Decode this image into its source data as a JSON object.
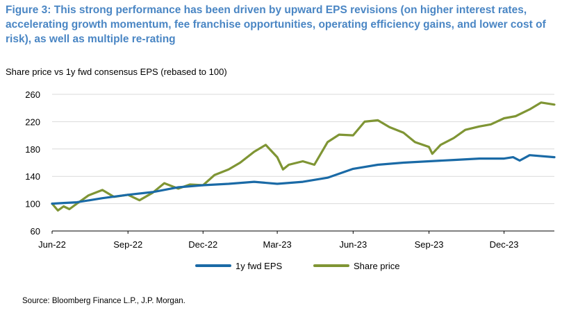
{
  "title": "Figure 3: This strong performance has been driven by upward EPS revisions (on higher interest rates, accelerating growth momentum, fee franchise opportunities, operating efficiency gains, and lower cost of risk), as well as multiple re-rating",
  "subtitle": "Share price vs 1y fwd consensus EPS (rebased to 100)",
  "source": "Source: Bloomberg Finance L.P., J.P. Morgan.",
  "chart_data": {
    "type": "line",
    "ylim": [
      60,
      260
    ],
    "y_ticks": [
      60,
      100,
      140,
      180,
      220,
      260
    ],
    "x_range": [
      "2022-06-01",
      "2024-01-31"
    ],
    "x_ticks": [
      {
        "date": "2022-06-01",
        "label": "Jun-22"
      },
      {
        "date": "2022-09-01",
        "label": "Sep-22"
      },
      {
        "date": "2022-12-01",
        "label": "Dec-22"
      },
      {
        "date": "2023-03-01",
        "label": "Mar-23"
      },
      {
        "date": "2023-06-01",
        "label": "Jun-23"
      },
      {
        "date": "2023-09-01",
        "label": "Sep-23"
      },
      {
        "date": "2023-12-01",
        "label": "Dec-23"
      }
    ],
    "grid": "horizontal",
    "legend": "bottom",
    "series": [
      {
        "name": "1y fwd EPS",
        "color": "#1a6aa6",
        "points": [
          [
            "2022-06-01",
            100
          ],
          [
            "2022-06-15",
            101
          ],
          [
            "2022-07-01",
            102
          ],
          [
            "2022-08-01",
            108
          ],
          [
            "2022-09-01",
            113
          ],
          [
            "2022-10-01",
            117
          ],
          [
            "2022-11-01",
            124
          ],
          [
            "2022-12-01",
            127
          ],
          [
            "2023-01-01",
            129
          ],
          [
            "2023-02-01",
            132
          ],
          [
            "2023-03-01",
            129
          ],
          [
            "2023-04-01",
            132
          ],
          [
            "2023-05-01",
            138
          ],
          [
            "2023-06-01",
            151
          ],
          [
            "2023-07-01",
            157
          ],
          [
            "2023-08-01",
            160
          ],
          [
            "2023-09-01",
            162
          ],
          [
            "2023-10-01",
            164
          ],
          [
            "2023-11-01",
            166
          ],
          [
            "2023-12-01",
            166
          ],
          [
            "2023-12-12",
            168
          ],
          [
            "2023-12-20",
            163
          ],
          [
            "2024-01-01",
            171
          ],
          [
            "2024-01-31",
            168
          ]
        ]
      },
      {
        "name": "Share price",
        "color": "#7f9534",
        "points": [
          [
            "2022-06-01",
            100
          ],
          [
            "2022-06-08",
            90
          ],
          [
            "2022-06-15",
            96
          ],
          [
            "2022-06-22",
            92
          ],
          [
            "2022-07-01",
            100
          ],
          [
            "2022-07-15",
            112
          ],
          [
            "2022-08-01",
            120
          ],
          [
            "2022-08-15",
            110
          ],
          [
            "2022-09-01",
            113
          ],
          [
            "2022-09-15",
            105
          ],
          [
            "2022-10-01",
            116
          ],
          [
            "2022-10-15",
            130
          ],
          [
            "2022-11-01",
            122
          ],
          [
            "2022-11-15",
            128
          ],
          [
            "2022-12-01",
            127
          ],
          [
            "2022-12-15",
            142
          ],
          [
            "2023-01-01",
            150
          ],
          [
            "2023-01-15",
            160
          ],
          [
            "2023-02-01",
            176
          ],
          [
            "2023-02-15",
            186
          ],
          [
            "2023-03-01",
            168
          ],
          [
            "2023-03-08",
            150
          ],
          [
            "2023-03-15",
            157
          ],
          [
            "2023-04-01",
            162
          ],
          [
            "2023-04-15",
            157
          ],
          [
            "2023-05-01",
            190
          ],
          [
            "2023-05-15",
            201
          ],
          [
            "2023-06-01",
            200
          ],
          [
            "2023-06-15",
            220
          ],
          [
            "2023-07-01",
            222
          ],
          [
            "2023-07-15",
            212
          ],
          [
            "2023-08-01",
            204
          ],
          [
            "2023-08-15",
            190
          ],
          [
            "2023-09-01",
            183
          ],
          [
            "2023-09-05",
            173
          ],
          [
            "2023-09-15",
            186
          ],
          [
            "2023-10-01",
            196
          ],
          [
            "2023-10-15",
            208
          ],
          [
            "2023-11-01",
            213
          ],
          [
            "2023-11-15",
            216
          ],
          [
            "2023-12-01",
            225
          ],
          [
            "2023-12-15",
            228
          ],
          [
            "2024-01-01",
            238
          ],
          [
            "2024-01-15",
            248
          ],
          [
            "2024-01-31",
            245
          ]
        ]
      }
    ]
  }
}
